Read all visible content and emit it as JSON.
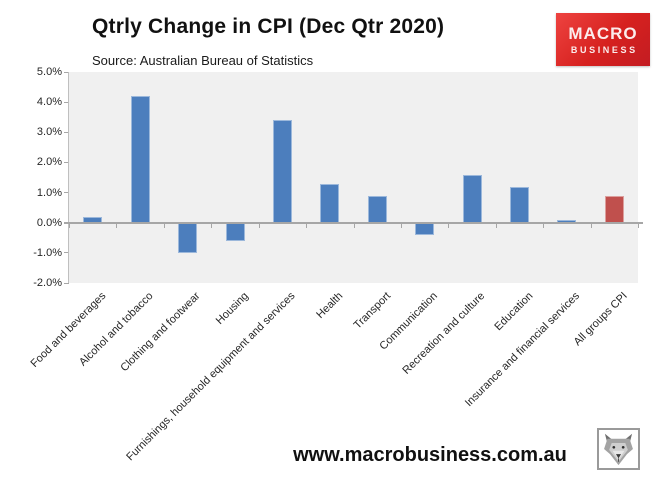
{
  "header": {
    "title": "Qtrly Change in CPI (Dec Qtr 2020)",
    "source": "Source: Australian Bureau of Statistics"
  },
  "logo": {
    "line1": "MACRO",
    "line2": "BUSINESS"
  },
  "footer": {
    "url": "www.macrobusiness.com.au"
  },
  "icons": {
    "wolf": "wolf-head-logo"
  },
  "colors": {
    "bar_blue": "#4c7ebd",
    "bar_red": "#c0504d",
    "plot_background": "#f0f0f0",
    "axis_gray": "#a6a6a6",
    "logo_red": "#d6211f"
  },
  "chart_data": {
    "type": "bar",
    "title": "Qtrly Change in CPI (Dec Qtr 2020)",
    "subtitle": "Source: Australian Bureau of Statistics",
    "categories": [
      "Food and beverages",
      "Alcohol and tobacco",
      "Clothing and footwear",
      "Housing",
      "Furnishings, household equipment and services",
      "Health",
      "Transport",
      "Communication",
      "Recreation and culture",
      "Education",
      "Insurance and financial services",
      "All groups CPI"
    ],
    "values": [
      0.2,
      4.2,
      -1.0,
      -0.6,
      3.4,
      1.3,
      0.9,
      -0.4,
      1.6,
      1.2,
      0.1,
      0.9
    ],
    "unit": "%",
    "bar_colors": [
      "#4c7ebd",
      "#4c7ebd",
      "#4c7ebd",
      "#4c7ebd",
      "#4c7ebd",
      "#4c7ebd",
      "#4c7ebd",
      "#4c7ebd",
      "#4c7ebd",
      "#4c7ebd",
      "#4c7ebd",
      "#c0504d"
    ],
    "ylim": [
      -2.0,
      5.0
    ],
    "ytick_step": 1.0,
    "ytick_labels": [
      "5.0%",
      "4.0%",
      "3.0%",
      "2.0%",
      "1.0%",
      "0.0%",
      "-1.0%",
      "-2.0%"
    ],
    "grid": false,
    "legend": "none",
    "xlabel": "",
    "ylabel": ""
  }
}
